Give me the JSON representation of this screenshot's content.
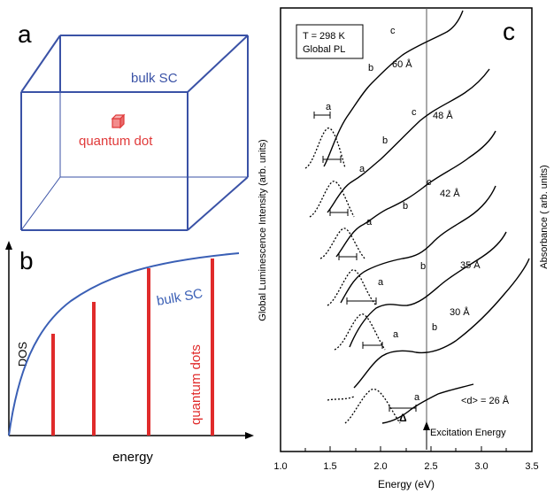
{
  "panel_a": {
    "letter": "a",
    "bulk_label": "bulk SC",
    "dot_label": "quantum dot",
    "colors": {
      "box": "#3a52a6",
      "dot": "#e03a3a"
    }
  },
  "panel_b": {
    "letter": "b",
    "ylabel": "DOS",
    "xlabel": "energy",
    "bulk_label": "bulk SC",
    "qd_label": "quantum dots",
    "colors": {
      "curve": "#3a5fb5",
      "bars": "#e02b2b"
    },
    "chart_data": {
      "type": "line",
      "series": [
        {
          "name": "bulk SC",
          "description": "square-root-like rising DOS curve"
        },
        {
          "name": "quantum dots",
          "bar_heights_fraction": [
            0.37,
            0.55,
            0.78,
            0.85
          ]
        }
      ]
    }
  },
  "panel_c": {
    "letter": "c",
    "legend_line1": "T = 298 K",
    "legend_line2": "Global PL",
    "ylabel_left": "Global Luminescence Intensity (arb. units)",
    "ylabel_right": "Absorbance ( arb. units)",
    "xlabel": "Energy  (eV)",
    "excitation_label": "Excitation Energy",
    "delta_label": "Δ",
    "chart_data": {
      "type": "line",
      "xlim": [
        1.0,
        3.5
      ],
      "xticks": [
        "1.0",
        "1.5",
        "2.0",
        "2.5",
        "3.0",
        "3.5"
      ],
      "excitation_energy": 2.5,
      "series": [
        {
          "name": "60 Å",
          "peak_a": 1.68,
          "b": 1.93,
          "c": 2.08,
          "pl_peak": 1.58
        },
        {
          "name": "48 Å",
          "peak_a": 1.78,
          "b": 2.08,
          "c": 2.33,
          "pl_peak": 1.68
        },
        {
          "name": "42 Å",
          "peak_a": 1.88,
          "b": 2.22,
          "c": 2.47,
          "pl_peak": 1.76
        },
        {
          "name": "35 Å",
          "peak_a": 2.03,
          "b": 2.43,
          "pl_peak": 1.85
        },
        {
          "name": "30 Å",
          "peak_a": 2.13,
          "b": 2.56,
          "pl_peak": 1.98
        },
        {
          "name": "<d> = 26 Å",
          "peak_a": 2.38,
          "pl_peak": 2.08
        }
      ],
      "peak_labels": [
        "a",
        "b",
        "c"
      ]
    }
  }
}
